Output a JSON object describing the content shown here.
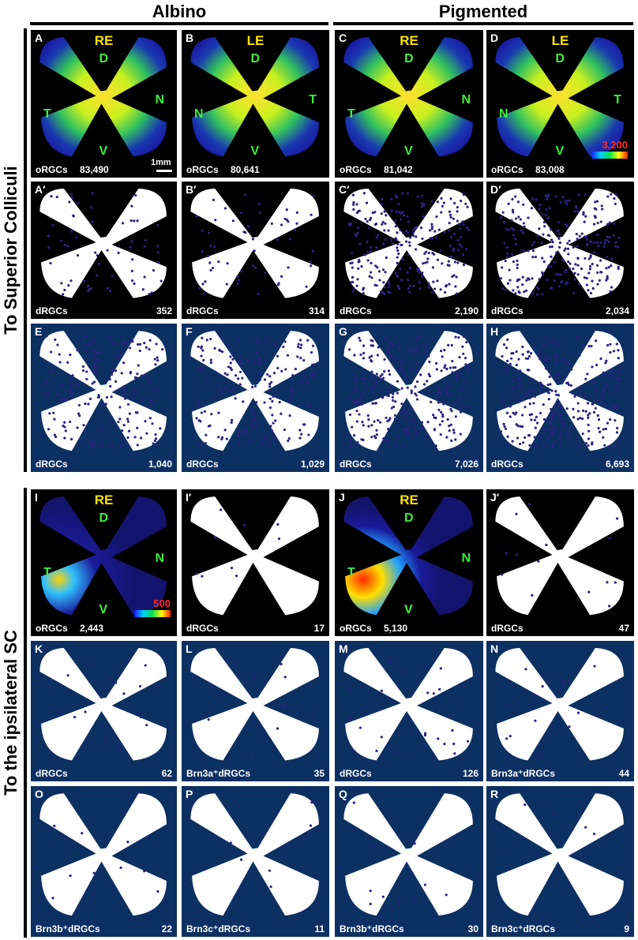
{
  "headers": {
    "albino": "Albino",
    "pigmented": "Pigmented"
  },
  "side_labels": {
    "top": "To Superior Colliculi",
    "bottom": "To the ipsilateral SC"
  },
  "orientation": {
    "D": "D",
    "V": "V",
    "T": "T",
    "N": "N"
  },
  "scale_label": "1mm",
  "colorbars": {
    "top": "3,200",
    "bottom": "500"
  },
  "colors": {
    "panel_black": "#000000",
    "panel_navy": "#0d3063",
    "dot": "#2b2380"
  },
  "panels": [
    {
      "id": "A",
      "letter": "A",
      "eye": "RE",
      "label": "oRGCs",
      "count": "83,490",
      "type": "density"
    },
    {
      "id": "B",
      "letter": "B",
      "eye": "LE",
      "label": "oRGCs",
      "count": "80,641",
      "type": "density"
    },
    {
      "id": "C",
      "letter": "C",
      "eye": "RE",
      "label": "oRGCs",
      "count": "81,042",
      "type": "density"
    },
    {
      "id": "D",
      "letter": "D",
      "eye": "LE",
      "label": "oRGCs",
      "count": "83,008",
      "type": "density"
    },
    {
      "id": "A2",
      "letter": "A′",
      "label": "dRGCs",
      "count": "352",
      "type": "dots"
    },
    {
      "id": "B2",
      "letter": "B′",
      "label": "dRGCs",
      "count": "314",
      "type": "dots"
    },
    {
      "id": "C2",
      "letter": "C′",
      "label": "dRGCs",
      "count": "2,190",
      "type": "dots"
    },
    {
      "id": "D2",
      "letter": "D′",
      "label": "dRGCs",
      "count": "2,034",
      "type": "dots"
    },
    {
      "id": "E",
      "letter": "E",
      "label": "dRGCs",
      "count": "1,040",
      "type": "dots"
    },
    {
      "id": "F",
      "letter": "F",
      "label": "dRGCs",
      "count": "1,029",
      "type": "dots"
    },
    {
      "id": "G",
      "letter": "G",
      "label": "dRGCs",
      "count": "7,026",
      "type": "dots"
    },
    {
      "id": "H",
      "letter": "H",
      "label": "dRGCs",
      "count": "6,693",
      "type": "dots"
    },
    {
      "id": "I",
      "letter": "I",
      "eye": "RE",
      "label": "oRGCs",
      "count": "2,443",
      "type": "density"
    },
    {
      "id": "I2",
      "letter": "I′",
      "label": "dRGCs",
      "count": "17",
      "type": "dots"
    },
    {
      "id": "J",
      "letter": "J",
      "eye": "RE",
      "label": "oRGCs",
      "count": "5,130",
      "type": "density"
    },
    {
      "id": "J2",
      "letter": "J′",
      "label": "dRGCs",
      "count": "47",
      "type": "dots"
    },
    {
      "id": "K",
      "letter": "K",
      "label": "dRGCs",
      "count": "62",
      "type": "dots"
    },
    {
      "id": "L",
      "letter": "L",
      "label": "Brn3a⁺dRGCs",
      "count": "35",
      "type": "dots"
    },
    {
      "id": "M",
      "letter": "M",
      "label": "dRGCs",
      "count": "126",
      "type": "dots"
    },
    {
      "id": "N",
      "letter": "N",
      "label": "Brn3a⁺dRGCs",
      "count": "44",
      "type": "dots"
    },
    {
      "id": "O",
      "letter": "O",
      "label": "Brn3b⁺dRGCs",
      "count": "22",
      "type": "dots"
    },
    {
      "id": "P",
      "letter": "P",
      "label": "Brn3c⁺dRGCs",
      "count": "11",
      "type": "dots"
    },
    {
      "id": "Q",
      "letter": "Q",
      "label": "Brn3b⁺dRGCs",
      "count": "30",
      "type": "dots"
    },
    {
      "id": "R",
      "letter": "R",
      "label": "Brn3c⁺dRGCs",
      "count": "9",
      "type": "dots"
    }
  ]
}
